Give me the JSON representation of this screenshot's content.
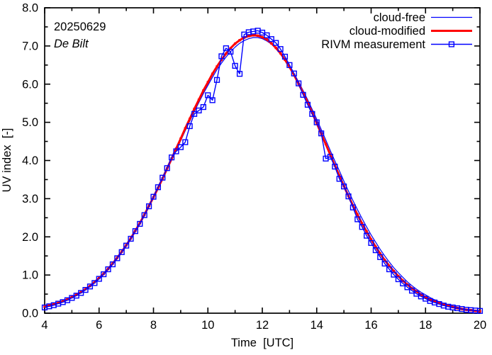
{
  "colors": {
    "background": "#ffffff",
    "axis": "#000000",
    "blue": "#0000ff",
    "red": "#ff0000"
  },
  "chart_data": {
    "type": "line",
    "annotations": {
      "date": "20250629",
      "station": "De Bilt"
    },
    "xlabel": "Time  [UTC]",
    "ylabel": "UV index  [-]",
    "xlim": [
      4,
      20
    ],
    "ylim": [
      0,
      8
    ],
    "grid": false,
    "legend_position": "top-right-inside",
    "xticks": {
      "major": [
        4,
        6,
        8,
        10,
        12,
        14,
        16,
        18,
        20
      ],
      "labels": [
        "4",
        "6",
        "8",
        "10",
        "12",
        "14",
        "16",
        "18",
        "20"
      ],
      "minor": [
        5,
        7,
        9,
        11,
        13,
        15,
        17,
        19
      ]
    },
    "yticks": {
      "major": [
        0,
        1,
        2,
        3,
        4,
        5,
        6,
        7,
        8
      ],
      "labels": [
        "0.0",
        "1.0",
        "2.0",
        "3.0",
        "4.0",
        "5.0",
        "6.0",
        "7.0",
        "8.0"
      ],
      "minor": [
        0.5,
        1.5,
        2.5,
        3.5,
        4.5,
        5.5,
        6.5,
        7.5
      ]
    },
    "x": [
      4,
      4.167,
      4.333,
      4.5,
      4.667,
      4.833,
      5,
      5.167,
      5.333,
      5.5,
      5.667,
      5.833,
      6,
      6.167,
      6.333,
      6.5,
      6.667,
      6.833,
      7,
      7.167,
      7.333,
      7.5,
      7.667,
      7.833,
      8,
      8.167,
      8.333,
      8.5,
      8.667,
      8.833,
      9,
      9.167,
      9.333,
      9.5,
      9.667,
      9.833,
      10,
      10.167,
      10.333,
      10.5,
      10.667,
      10.833,
      11,
      11.167,
      11.333,
      11.5,
      11.667,
      11.833,
      12,
      12.167,
      12.333,
      12.5,
      12.667,
      12.833,
      13,
      13.167,
      13.333,
      13.5,
      13.667,
      13.833,
      14,
      14.167,
      14.333,
      14.5,
      14.667,
      14.833,
      15,
      15.167,
      15.333,
      15.5,
      15.667,
      15.833,
      16,
      16.167,
      16.333,
      16.5,
      16.667,
      16.833,
      17,
      17.167,
      17.333,
      17.5,
      17.667,
      17.833,
      18,
      18.167,
      18.333,
      18.5,
      18.667,
      18.833,
      19,
      19.167,
      19.333,
      19.5,
      19.667,
      19.833,
      20
    ],
    "series": [
      {
        "name": "cloud-free",
        "color": "#0000ff",
        "style": "line",
        "width": 1.2,
        "values": [
          0.17,
          0.2,
          0.24,
          0.28,
          0.32,
          0.37,
          0.43,
          0.49,
          0.56,
          0.64,
          0.73,
          0.82,
          0.93,
          1.05,
          1.17,
          1.31,
          1.46,
          1.61,
          1.78,
          1.96,
          2.15,
          2.36,
          2.57,
          2.79,
          3.02,
          3.26,
          3.5,
          3.75,
          4.01,
          4.26,
          4.52,
          4.78,
          5.03,
          5.28,
          5.52,
          5.75,
          5.97,
          6.18,
          6.38,
          6.55,
          6.71,
          6.85,
          6.97,
          7.07,
          7.14,
          7.19,
          7.22,
          7.22,
          7.19,
          7.13,
          7.05,
          6.94,
          6.81,
          6.65,
          6.48,
          6.28,
          6.06,
          5.83,
          5.59,
          5.34,
          5.08,
          4.81,
          4.54,
          4.26,
          3.99,
          3.73,
          3.46,
          3.2,
          2.95,
          2.71,
          2.48,
          2.26,
          2.05,
          1.86,
          1.67,
          1.5,
          1.34,
          1.19,
          1.06,
          0.94,
          0.82,
          0.72,
          0.63,
          0.55,
          0.48,
          0.41,
          0.35,
          0.3,
          0.26,
          0.22,
          0.19,
          0.16,
          0.13,
          0.11,
          0.09,
          0.08,
          0.06
        ]
      },
      {
        "name": "cloud-modified",
        "color": "#ff0000",
        "style": "line-dot",
        "width": 3,
        "values": [
          0.17,
          0.2,
          0.23,
          0.27,
          0.31,
          0.36,
          0.42,
          0.48,
          0.55,
          0.63,
          0.71,
          0.81,
          0.92,
          1.03,
          1.16,
          1.3,
          1.45,
          1.61,
          1.78,
          1.96,
          2.16,
          2.36,
          2.58,
          2.81,
          3.04,
          3.28,
          3.53,
          3.79,
          4.05,
          4.31,
          4.57,
          4.84,
          5.09,
          5.35,
          5.59,
          5.83,
          6.05,
          6.27,
          6.46,
          6.64,
          6.8,
          6.94,
          7.06,
          7.15,
          7.22,
          7.26,
          7.28,
          7.27,
          7.23,
          7.17,
          7.07,
          6.95,
          6.81,
          6.64,
          6.45,
          6.24,
          6.01,
          5.77,
          5.52,
          5.25,
          4.98,
          4.7,
          4.43,
          4.15,
          3.87,
          3.6,
          3.33,
          3.07,
          2.82,
          2.58,
          2.35,
          2.14,
          1.93,
          1.74,
          1.56,
          1.39,
          1.24,
          1.1,
          0.97,
          0.85,
          0.75,
          0.65,
          0.57,
          0.49,
          0.42,
          0.36,
          0.31,
          0.26,
          0.22,
          0.19,
          0.16,
          0.13,
          0.11,
          0.09,
          0.08,
          0.06,
          0.05
        ]
      },
      {
        "name": "RIVM measurement",
        "color": "#0000ff",
        "style": "line-square",
        "width": 1.4,
        "values": [
          0.15,
          0.18,
          0.21,
          0.25,
          0.29,
          0.34,
          0.4,
          0.46,
          0.53,
          0.61,
          0.7,
          0.79,
          0.9,
          1.02,
          1.15,
          1.28,
          1.44,
          1.6,
          1.77,
          1.95,
          2.15,
          2.34,
          2.57,
          2.8,
          3.05,
          3.3,
          3.55,
          3.8,
          4.08,
          4.24,
          4.35,
          4.48,
          4.9,
          5.22,
          5.31,
          5.4,
          5.71,
          5.58,
          6.11,
          6.73,
          6.94,
          6.85,
          6.48,
          6.27,
          7.3,
          7.36,
          7.38,
          7.4,
          7.35,
          7.28,
          7.18,
          7.08,
          6.92,
          6.72,
          6.5,
          6.28,
          6.02,
          5.72,
          5.46,
          5.22,
          5.0,
          4.71,
          4.05,
          4.1,
          3.84,
          3.52,
          3.32,
          3.06,
          2.77,
          2.46,
          2.26,
          2.03,
          1.84,
          1.65,
          1.47,
          1.3,
          1.15,
          1.01,
          0.89,
          0.78,
          0.68,
          0.59,
          0.51,
          0.44,
          0.38,
          0.32,
          0.28,
          0.24,
          0.2,
          0.17,
          0.15,
          0.13,
          0.11,
          0.09,
          0.08,
          0.07,
          0.06
        ]
      }
    ]
  }
}
